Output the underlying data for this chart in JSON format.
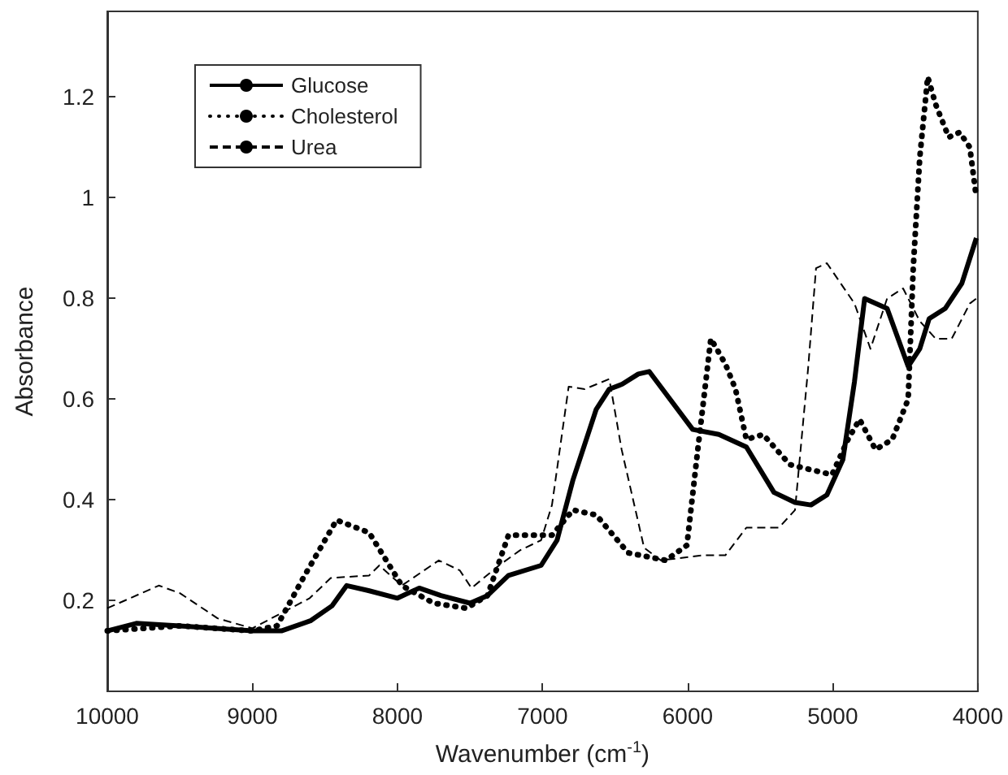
{
  "chart_data": {
    "type": "line",
    "xlabel": "Wavenumber (cm$^{-1}$)",
    "ylabel": "Absorbance",
    "xlim": [
      10000,
      4000
    ],
    "xticks": [
      10000,
      9000,
      8000,
      7000,
      6000,
      5000,
      4000
    ],
    "ylim": [
      0.02,
      1.37
    ],
    "yticks": [
      0.2,
      0.4,
      0.6,
      0.8,
      1,
      1.2
    ],
    "grid": false,
    "legend": "top left",
    "marker": "none",
    "series": [
      {
        "name": "Glucose",
        "color": "#000000",
        "line_style": "solid",
        "x": [
          10000,
          9800,
          9500,
          9000,
          8800,
          8600,
          8450,
          8350,
          8200,
          8000,
          7850,
          7700,
          7500,
          7380,
          7235,
          7010,
          6900,
          6790,
          6630,
          6540,
          6450,
          6340,
          6265,
          5965,
          5785,
          5595,
          5405,
          5260,
          5150,
          5040,
          4930,
          4850,
          4780,
          4625,
          4480,
          4400,
          4335,
          4225,
          4110,
          4010
        ],
        "values": [
          0.14,
          0.155,
          0.15,
          0.14,
          0.14,
          0.16,
          0.19,
          0.23,
          0.22,
          0.205,
          0.225,
          0.21,
          0.195,
          0.21,
          0.25,
          0.27,
          0.32,
          0.44,
          0.58,
          0.62,
          0.63,
          0.65,
          0.655,
          0.54,
          0.53,
          0.505,
          0.415,
          0.395,
          0.39,
          0.41,
          0.48,
          0.635,
          0.8,
          0.78,
          0.665,
          0.7,
          0.76,
          0.78,
          0.83,
          0.92
        ]
      },
      {
        "name": "Cholesterol",
        "color": "#000000",
        "line_style": "dotted",
        "x": [
          10000,
          9500,
          9000,
          8830,
          8640,
          8420,
          8195,
          7970,
          7750,
          7525,
          7380,
          7235,
          7045,
          6935,
          6790,
          6630,
          6410,
          6150,
          6005,
          5930,
          5840,
          5740,
          5670,
          5595,
          5480,
          5295,
          5005,
          4895,
          4815,
          4705,
          4590,
          4480,
          4445,
          4400,
          4345,
          4290,
          4200,
          4125,
          4055,
          4010
        ],
        "values": [
          0.14,
          0.15,
          0.14,
          0.15,
          0.25,
          0.36,
          0.335,
          0.23,
          0.195,
          0.185,
          0.21,
          0.33,
          0.33,
          0.33,
          0.38,
          0.37,
          0.295,
          0.28,
          0.31,
          0.5,
          0.72,
          0.67,
          0.62,
          0.52,
          0.53,
          0.47,
          0.45,
          0.52,
          0.56,
          0.5,
          0.52,
          0.6,
          0.86,
          1.08,
          1.24,
          1.185,
          1.12,
          1.13,
          1.1,
          1.0
        ]
      },
      {
        "name": "Urea",
        "color": "#000000",
        "line_style": "dashed",
        "x": [
          10000,
          9645,
          9500,
          9240,
          9000,
          8605,
          8460,
          8195,
          8125,
          7970,
          7715,
          7570,
          7490,
          7300,
          7155,
          7010,
          6935,
          6820,
          6710,
          6540,
          6455,
          6300,
          6185,
          5895,
          5740,
          5595,
          5370,
          5260,
          5170,
          5115,
          5040,
          4850,
          4740,
          4625,
          4515,
          4400,
          4290,
          4180,
          4055,
          4010
        ],
        "values": [
          0.185,
          0.23,
          0.215,
          0.165,
          0.145,
          0.205,
          0.245,
          0.25,
          0.27,
          0.23,
          0.28,
          0.26,
          0.225,
          0.27,
          0.3,
          0.32,
          0.39,
          0.625,
          0.62,
          0.64,
          0.5,
          0.305,
          0.28,
          0.29,
          0.29,
          0.345,
          0.345,
          0.38,
          0.66,
          0.86,
          0.87,
          0.79,
          0.7,
          0.8,
          0.82,
          0.755,
          0.72,
          0.72,
          0.79,
          0.8
        ]
      }
    ]
  }
}
